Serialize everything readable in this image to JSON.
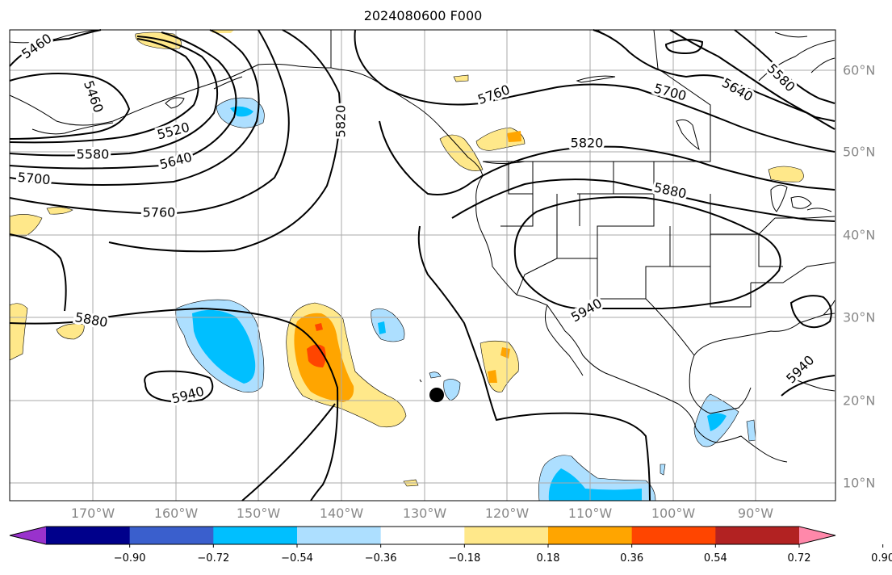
{
  "title": "2024080600 F000",
  "longitude_labels": [
    "170°W",
    "160°W",
    "150°W",
    "140°W",
    "130°W",
    "120°W",
    "110°W",
    "100°W",
    "90°W"
  ],
  "latitude_labels": [
    "60°N",
    "50°N",
    "40°N",
    "30°N",
    "20°N",
    "10°N"
  ],
  "contour_labels": [
    "5460",
    "5460",
    "5520",
    "5580",
    "5640",
    "5700",
    "5760",
    "5820",
    "5880",
    "5940",
    "5760",
    "5700",
    "5640",
    "5580",
    "5820",
    "5880",
    "5940",
    "5940"
  ],
  "colorbar": {
    "tick_labels": [
      "−0.90",
      "−0.72",
      "−0.54",
      "−0.36",
      "−0.18",
      "0.18",
      "0.36",
      "0.54",
      "0.72",
      "0.90"
    ],
    "colors": [
      "#9932CC",
      "#00008B",
      "#3A5FCD",
      "#00BFFF",
      "#ADDFFF",
      "#FFFFFF",
      "#FFE88A",
      "#FFA500",
      "#FF4500",
      "#B22222",
      "#FF88AA"
    ]
  },
  "colors": {
    "grid": "#aaaaaa",
    "axis_label": "#888888",
    "contour": "#000000"
  }
}
